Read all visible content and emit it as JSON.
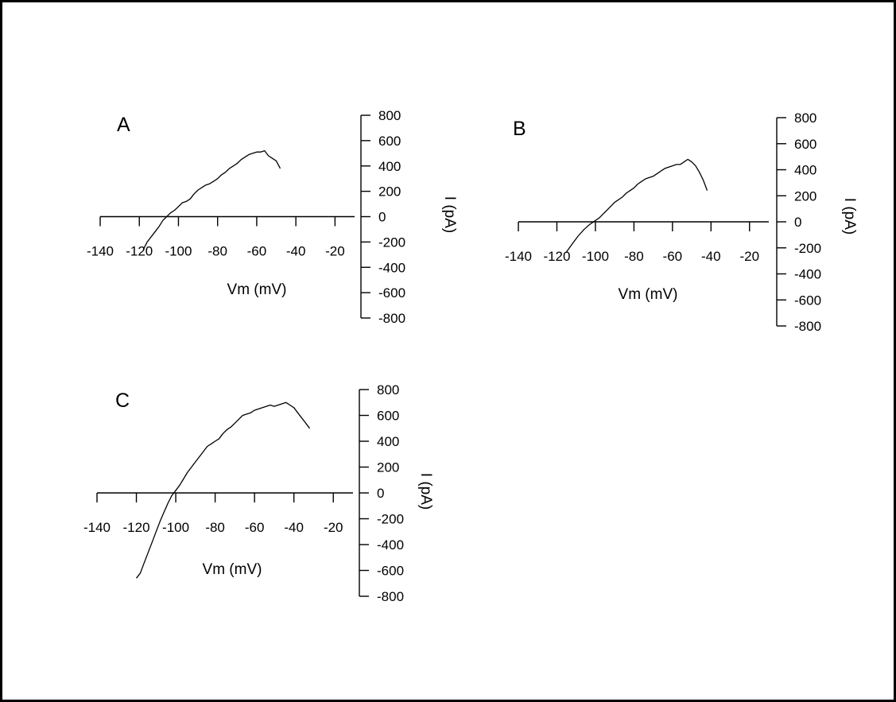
{
  "chart_data": [
    {
      "type": "line",
      "panel_label": "A",
      "xlabel": "Vm (mV)",
      "ylabel": "I (pA)",
      "xlim": [
        -140,
        -10
      ],
      "ylim": [
        -800,
        800
      ],
      "x_ticks": [
        -140,
        -120,
        -100,
        -80,
        -60,
        -40,
        -20
      ],
      "x_tick_labels": [
        "-140",
        "-120",
        "-100",
        "-80",
        "-60",
        "-40",
        "-20"
      ],
      "y_ticks": [
        800,
        600,
        400,
        200,
        0,
        -200,
        -400,
        -600,
        -800
      ],
      "y_tick_labels": [
        "800",
        "600",
        "400",
        "200",
        "0",
        "-200",
        "-400",
        "-600",
        "-800"
      ],
      "grid": false,
      "series": [
        {
          "x": [
            -118,
            -116,
            -113,
            -110,
            -108,
            -106,
            -104,
            -102,
            -100,
            -98,
            -96,
            -94,
            -92,
            -90,
            -88,
            -86,
            -84,
            -82,
            -80,
            -78,
            -76,
            -74,
            -72,
            -70,
            -68,
            -66,
            -64,
            -62,
            -60,
            -58,
            -56,
            -54,
            -52,
            -50,
            -48
          ],
          "y": [
            -260,
            -200,
            -140,
            -80,
            -30,
            0,
            30,
            50,
            80,
            110,
            120,
            140,
            180,
            210,
            230,
            250,
            260,
            280,
            300,
            330,
            350,
            380,
            400,
            420,
            450,
            470,
            490,
            500,
            510,
            510,
            520,
            480,
            460,
            440,
            380
          ]
        }
      ]
    },
    {
      "type": "line",
      "panel_label": "B",
      "xlabel": "Vm (mV)",
      "ylabel": "I (pA)",
      "xlim": [
        -140,
        -10
      ],
      "ylim": [
        -800,
        800
      ],
      "x_ticks": [
        -140,
        -120,
        -100,
        -80,
        -60,
        -40,
        -20
      ],
      "x_tick_labels": [
        "-140",
        "-120",
        "-100",
        "-80",
        "-60",
        "-40",
        "-20"
      ],
      "y_ticks": [
        800,
        600,
        400,
        200,
        0,
        -200,
        -400,
        -600,
        -800
      ],
      "y_tick_labels": [
        "800",
        "600",
        "400",
        "200",
        "0",
        "-200",
        "-400",
        "-600",
        "-800"
      ],
      "grid": false,
      "series": [
        {
          "x": [
            -115,
            -112,
            -109,
            -106,
            -103,
            -100,
            -98,
            -96,
            -94,
            -92,
            -90,
            -88,
            -86,
            -84,
            -82,
            -80,
            -78,
            -76,
            -74,
            -72,
            -70,
            -68,
            -66,
            -64,
            -62,
            -60,
            -58,
            -56,
            -54,
            -52,
            -50,
            -48,
            -46,
            -44,
            -42
          ],
          "y": [
            -230,
            -170,
            -110,
            -60,
            -20,
            10,
            30,
            60,
            90,
            120,
            150,
            170,
            190,
            220,
            240,
            260,
            290,
            310,
            330,
            340,
            350,
            370,
            390,
            410,
            420,
            430,
            440,
            440,
            460,
            480,
            460,
            430,
            380,
            320,
            240
          ]
        }
      ]
    },
    {
      "type": "line",
      "panel_label": "C",
      "xlabel": "Vm (mV)",
      "ylabel": "I (pA)",
      "xlim": [
        -140,
        -10
      ],
      "ylim": [
        -800,
        800
      ],
      "x_ticks": [
        -140,
        -120,
        -100,
        -80,
        -60,
        -40,
        -20
      ],
      "x_tick_labels": [
        "-140",
        "-120",
        "-100",
        "-80",
        "-60",
        "-40",
        "-20"
      ],
      "y_ticks": [
        800,
        600,
        400,
        200,
        0,
        -200,
        -400,
        -600,
        -800
      ],
      "y_tick_labels": [
        "800",
        "600",
        "400",
        "200",
        "0",
        "-200",
        "-400",
        "-600",
        "-800"
      ],
      "grid": false,
      "series": [
        {
          "x": [
            -120,
            -118,
            -116,
            -114,
            -112,
            -110,
            -108,
            -106,
            -104,
            -102,
            -100,
            -98,
            -96,
            -94,
            -92,
            -90,
            -88,
            -86,
            -84,
            -82,
            -80,
            -78,
            -76,
            -74,
            -72,
            -70,
            -68,
            -66,
            -64,
            -62,
            -60,
            -58,
            -56,
            -54,
            -52,
            -50,
            -48,
            -46,
            -44,
            -42,
            -40,
            -38,
            -36,
            -34,
            -32
          ],
          "y": [
            -660,
            -620,
            -540,
            -460,
            -380,
            -300,
            -220,
            -150,
            -80,
            -20,
            20,
            60,
            110,
            160,
            200,
            240,
            280,
            320,
            360,
            380,
            400,
            420,
            460,
            490,
            510,
            540,
            570,
            600,
            610,
            620,
            640,
            650,
            660,
            670,
            680,
            670,
            680,
            690,
            700,
            680,
            660,
            620,
            580,
            540,
            500
          ]
        }
      ]
    }
  ]
}
